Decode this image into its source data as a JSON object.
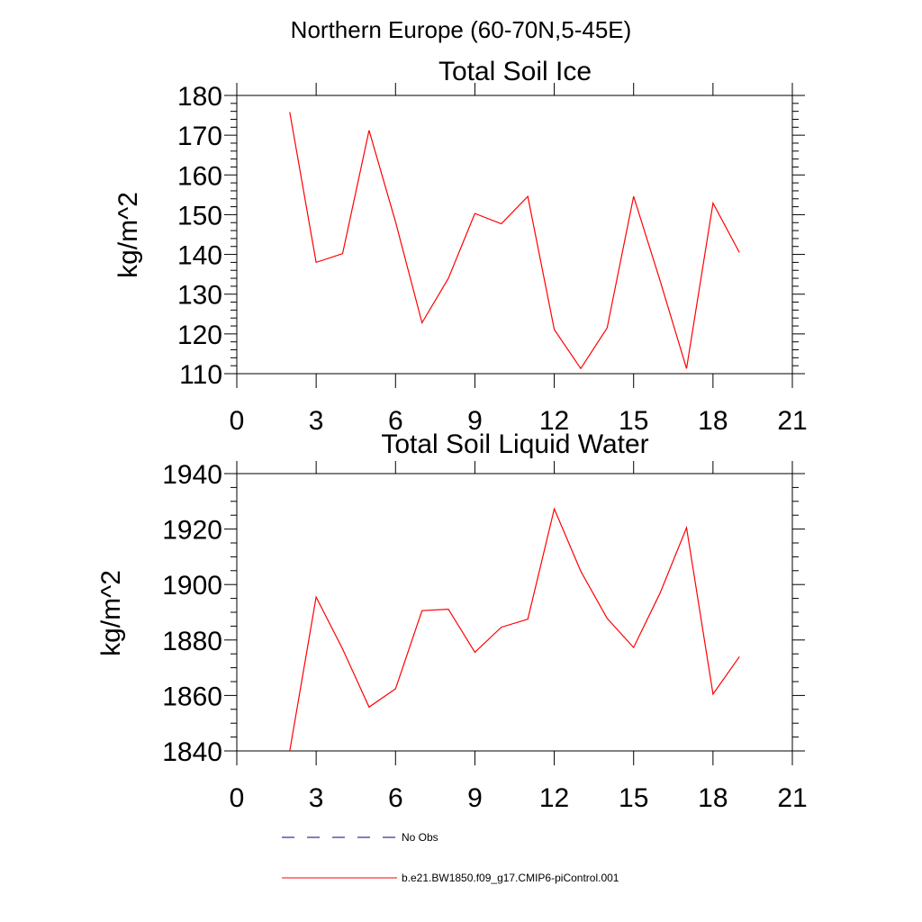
{
  "figure": {
    "title": "Northern Europe (60-70N,5-45E)"
  },
  "legend": {
    "entries": [
      {
        "label": "No Obs",
        "style": "dashed",
        "color": "#000080"
      },
      {
        "label": "b.e21.BW1850.f09_g17.CMIP6-piControl.001",
        "style": "solid",
        "color": "#ff0000"
      }
    ]
  },
  "chart_data": [
    {
      "type": "line",
      "title": "Total Soil Ice",
      "ylabel": "kg/m^2",
      "xlabel": "",
      "xlim": [
        0,
        21
      ],
      "ylim": [
        110,
        180
      ],
      "xticks": [
        0,
        3,
        6,
        9,
        12,
        15,
        18,
        21
      ],
      "yticks": [
        110,
        120,
        130,
        140,
        150,
        160,
        170,
        180
      ],
      "grid": false,
      "series": [
        {
          "name": "b.e21.BW1850.f09_g17.CMIP6-piControl.001",
          "color": "#ff0000",
          "x": [
            2,
            3,
            4,
            5,
            6,
            7,
            8,
            9,
            10,
            11,
            12,
            13,
            14,
            15,
            16,
            17,
            18,
            19
          ],
          "y": [
            175.8,
            138,
            140.2,
            171.2,
            148.2,
            122.8,
            134,
            150.3,
            147.7,
            154.6,
            121.1,
            111.3,
            121.5,
            154.6,
            133.4,
            111.3,
            152.9,
            140.5
          ]
        }
      ]
    },
    {
      "type": "line",
      "title": "Total Soil Liquid Water",
      "ylabel": "kg/m^2",
      "xlabel": "",
      "xlim": [
        0,
        21
      ],
      "ylim": [
        1840,
        1940
      ],
      "xticks": [
        0,
        3,
        6,
        9,
        12,
        15,
        18,
        21
      ],
      "yticks": [
        1840,
        1860,
        1880,
        1900,
        1920,
        1940
      ],
      "grid": false,
      "series": [
        {
          "name": "b.e21.BW1850.f09_g17.CMIP6-piControl.001",
          "color": "#ff0000",
          "x": [
            2,
            3,
            4,
            5,
            6,
            7,
            8,
            9,
            10,
            11,
            12,
            13,
            14,
            15,
            16,
            17,
            18,
            19
          ],
          "y": [
            1840,
            1895.5,
            1876.8,
            1855.8,
            1862.4,
            1890.6,
            1891.1,
            1875.6,
            1884.6,
            1887.5,
            1927.3,
            1904.8,
            1887.8,
            1877.3,
            1896.9,
            1920.5,
            1860.5,
            1874
          ]
        }
      ]
    }
  ]
}
